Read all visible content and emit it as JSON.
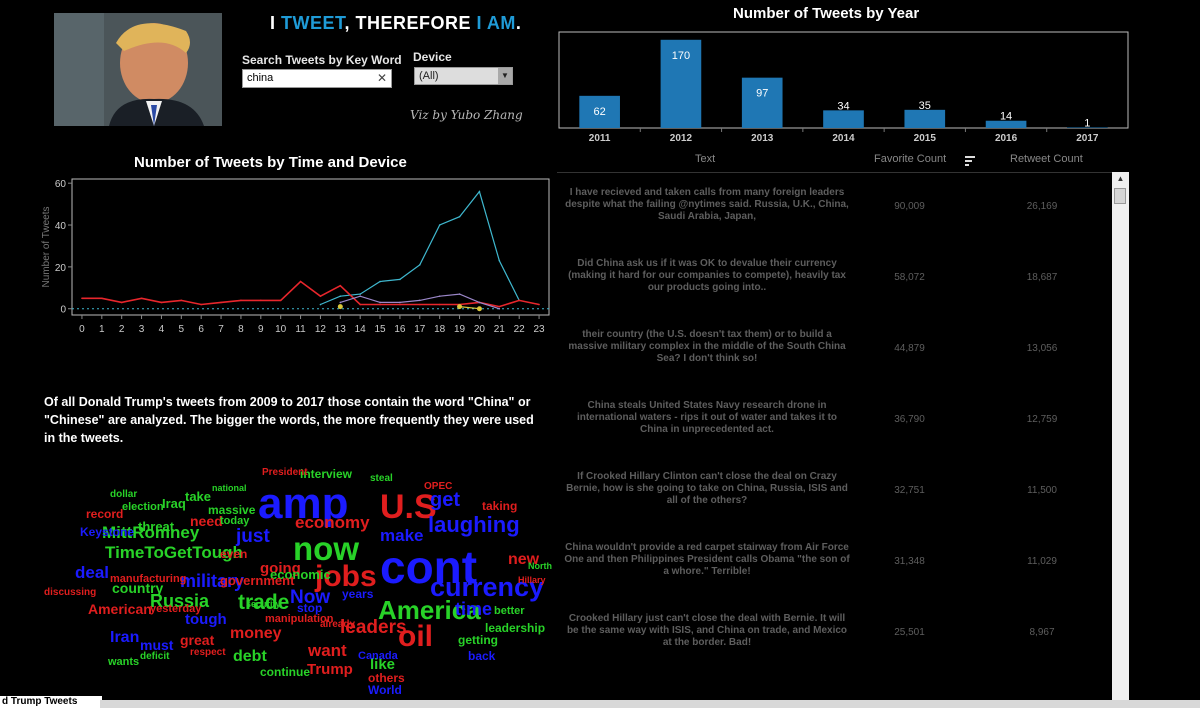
{
  "header": {
    "title_parts": [
      "I ",
      "TWEET",
      ", THEREFORE ",
      "I AM",
      "."
    ],
    "search_label": "Search Tweets by Key Word",
    "search_value": "china",
    "device_label": "Device",
    "device_value": "(All)",
    "signature": "Viz by Yubo Zhang"
  },
  "year_chart": {
    "title": "Number of Tweets by Year"
  },
  "time_chart": {
    "title": "Number of Tweets by Time and Device",
    "ylabel": "Number of Tweets"
  },
  "description": "Of all Donald Trump's tweets from 2009 to 2017 those contain the word \"China\" or \"Chinese\" are analyzed. The bigger the words, the more frequently they were used in the tweets.",
  "table": {
    "headers": {
      "text": "Text",
      "favorite": "Favorite Count",
      "retweet": "Retweet Count"
    },
    "rows": [
      {
        "text": "I have recieved and taken calls from many foreign leaders despite what the failing @nytimes said. Russia, U.K., China, Saudi Arabia, Japan,",
        "favorite": "90,009",
        "retweet": "26,169"
      },
      {
        "text": "Did China ask us if it was OK to devalue their currency (making it hard for our companies to compete), heavily tax our products going into..",
        "favorite": "58,072",
        "retweet": "18,687"
      },
      {
        "text": "their country (the U.S. doesn't tax them) or to build a massive military complex in the middle of the South China Sea?  I don't think so!",
        "favorite": "44,879",
        "retweet": "13,056"
      },
      {
        "text": "China steals United States Navy research drone in international waters - rips it out of water and takes it to China in unprecedented act.",
        "favorite": "36,790",
        "retweet": "12,759"
      },
      {
        "text": "If Crooked Hillary Clinton can't close the deal on Crazy Bernie, how is she going to take on China, Russia, ISIS and all of the others?",
        "favorite": "32,751",
        "retweet": "11,500"
      },
      {
        "text": "China wouldn't provide a red carpet stairway from Air Force One and then Philippines President calls Obama \"the son of a whore.\" Terrible!",
        "favorite": "31,348",
        "retweet": "11,029"
      },
      {
        "text": "Crooked Hillary just can't close the deal with Bernie. It will be the same way with ISIS, and China on trade, and Mexico at the border. Bad!",
        "favorite": "25,501",
        "retweet": "8,967"
      }
    ]
  },
  "bottom_tab": "d Trump Tweets",
  "colors": {
    "accent": "#1f9bd7",
    "bar": "#1f77b4",
    "line_cyan": "#3fb8cf",
    "line_red": "#e8262c",
    "line_purple": "#9b87c9",
    "line_yellow": "#d9c73b"
  },
  "chart_data": [
    {
      "type": "bar",
      "title": "Number of Tweets by Year",
      "categories": [
        "2011",
        "2012",
        "2013",
        "2014",
        "2015",
        "2016",
        "2017"
      ],
      "values": [
        62,
        170,
        97,
        34,
        35,
        14,
        1
      ],
      "ylim": [
        0,
        185
      ]
    },
    {
      "type": "line",
      "title": "Number of Tweets by Time and Device",
      "ylabel": "Number of Tweets",
      "x": [
        0,
        1,
        2,
        3,
        4,
        5,
        6,
        7,
        8,
        9,
        10,
        11,
        12,
        13,
        14,
        15,
        16,
        17,
        18,
        19,
        20,
        21,
        22,
        23
      ],
      "yticks": [
        0,
        20,
        40,
        60
      ],
      "ylim": [
        -3,
        62
      ],
      "grid": false,
      "series": [
        {
          "values": [
            null,
            null,
            null,
            null,
            null,
            null,
            null,
            null,
            null,
            null,
            null,
            null,
            2,
            6,
            7,
            13,
            14,
            21,
            40,
            44,
            56,
            23,
            4,
            null
          ]
        },
        {
          "values": [
            5,
            5,
            3,
            5,
            3,
            4,
            2,
            3,
            4,
            4,
            4,
            13,
            6,
            11,
            2,
            2,
            2,
            2,
            2,
            2,
            3,
            1,
            4,
            2
          ]
        },
        {
          "values": [
            null,
            null,
            null,
            null,
            null,
            null,
            null,
            null,
            null,
            null,
            null,
            null,
            null,
            3,
            6,
            3,
            3,
            4,
            6,
            7,
            3,
            0,
            null,
            null
          ]
        },
        {
          "values": [
            null,
            null,
            null,
            null,
            null,
            null,
            null,
            null,
            null,
            null,
            null,
            null,
            null,
            1,
            null,
            null,
            null,
            null,
            null,
            1,
            0,
            null,
            null,
            null
          ]
        }
      ]
    }
  ],
  "wordcloud": [
    {
      "text": "amp",
      "color": "#1b1bff"
    },
    {
      "text": "U.S",
      "color": "#e01e1e"
    },
    {
      "text": "cont",
      "color": "#1b1bff"
    },
    {
      "text": "now",
      "color": "#28d228"
    },
    {
      "text": "jobs",
      "color": "#e01e1e"
    },
    {
      "text": "currency",
      "color": "#1b1bff"
    },
    {
      "text": "America",
      "color": "#28d228"
    },
    {
      "text": "oil",
      "color": "#e01e1e"
    },
    {
      "text": "laughing",
      "color": "#1b1bff"
    },
    {
      "text": "get",
      "color": "#1b1bff"
    },
    {
      "text": "economy",
      "color": "#e01e1e"
    },
    {
      "text": "make",
      "color": "#1b1bff"
    },
    {
      "text": "just",
      "color": "#1b1bff"
    },
    {
      "text": "MittRomney",
      "color": "#28d228"
    },
    {
      "text": "TimeToGetTough",
      "color": "#28d228"
    },
    {
      "text": "deal",
      "color": "#1b1bff"
    },
    {
      "text": "military",
      "color": "#1b1bff"
    },
    {
      "text": "Russia",
      "color": "#28d228"
    },
    {
      "text": "trade",
      "color": "#28d228"
    },
    {
      "text": "Now",
      "color": "#1b1bff"
    },
    {
      "text": "leaders",
      "color": "#e01e1e"
    },
    {
      "text": "want",
      "color": "#e01e1e"
    },
    {
      "text": "debt",
      "color": "#28d228"
    },
    {
      "text": "Trump",
      "color": "#e01e1e"
    },
    {
      "text": "like",
      "color": "#28d228"
    },
    {
      "text": "new",
      "color": "#e01e1e"
    },
    {
      "text": "taking",
      "color": "#e01e1e"
    },
    {
      "text": "time",
      "color": "#1b1bff"
    },
    {
      "text": "Iran",
      "color": "#1b1bff"
    },
    {
      "text": "tough",
      "color": "#1b1bff"
    },
    {
      "text": "money",
      "color": "#e01e1e"
    },
    {
      "text": "going",
      "color": "#e01e1e"
    },
    {
      "text": "need",
      "color": "#e01e1e"
    },
    {
      "text": "country",
      "color": "#28d228"
    },
    {
      "text": "American",
      "color": "#e01e1e"
    },
    {
      "text": "great",
      "color": "#e01e1e"
    },
    {
      "text": "must",
      "color": "#1b1bff"
    },
    {
      "text": "stop",
      "color": "#1b1bff"
    },
    {
      "text": "economic",
      "color": "#28d228"
    },
    {
      "text": "government",
      "color": "#e01e1e"
    },
    {
      "text": "even",
      "color": "#e01e1e"
    },
    {
      "text": "years",
      "color": "#1b1bff"
    },
    {
      "text": "others",
      "color": "#e01e1e"
    },
    {
      "text": "World",
      "color": "#1b1bff"
    },
    {
      "text": "Canada",
      "color": "#1b1bff"
    },
    {
      "text": "continue",
      "color": "#28d228"
    },
    {
      "text": "leadership",
      "color": "#28d228"
    },
    {
      "text": "getting",
      "color": "#28d228"
    },
    {
      "text": "back",
      "color": "#1b1bff"
    },
    {
      "text": "better",
      "color": "#28d228"
    },
    {
      "text": "interview",
      "color": "#28d228"
    },
    {
      "text": "steal",
      "color": "#28d228"
    },
    {
      "text": "OPEC",
      "color": "#e01e1e"
    },
    {
      "text": "take",
      "color": "#28d228"
    },
    {
      "text": "Iraq",
      "color": "#28d228"
    },
    {
      "text": "threat",
      "color": "#28d228"
    },
    {
      "text": "massive",
      "color": "#28d228"
    },
    {
      "text": "today",
      "color": "#28d228"
    },
    {
      "text": "record",
      "color": "#e01e1e"
    },
    {
      "text": "election",
      "color": "#28d228"
    },
    {
      "text": "manufacturing",
      "color": "#e01e1e"
    },
    {
      "text": "yesterday",
      "color": "#e01e1e"
    },
    {
      "text": "manipulation",
      "color": "#e01e1e"
    },
    {
      "text": "already",
      "color": "#e01e1e"
    },
    {
      "text": "wants",
      "color": "#28d228"
    },
    {
      "text": "deficit",
      "color": "#28d228"
    },
    {
      "text": "respect",
      "color": "#e01e1e"
    },
    {
      "text": "Keystone",
      "color": "#1b1bff"
    },
    {
      "text": "national",
      "color": "#28d228"
    },
    {
      "text": "discussing",
      "color": "#e01e1e"
    },
    {
      "text": "security",
      "color": "#28d228"
    },
    {
      "text": "North",
      "color": "#28d228"
    },
    {
      "text": "Hillary",
      "color": "#e01e1e"
    },
    {
      "text": "President",
      "color": "#e01e1e"
    },
    {
      "text": "dollar",
      "color": "#28d228"
    }
  ]
}
